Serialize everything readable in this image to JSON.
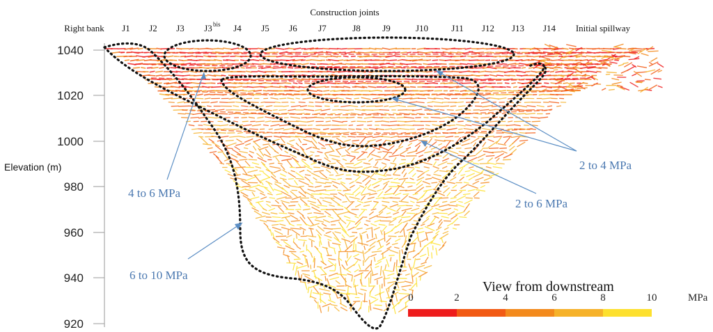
{
  "chart_data": {
    "type": "stress-field",
    "title": "Construction joints",
    "ylabel": "Elevation (m)",
    "ylim": [
      920,
      1040
    ],
    "yticks": [
      1040,
      1020,
      1000,
      980,
      960,
      940,
      920
    ],
    "joints": [
      "Right bank",
      "J1",
      "J2",
      "J3",
      "J3",
      "J4",
      "J5",
      "J6",
      "J7",
      "J8",
      "J9",
      "J10",
      "J11",
      "J12",
      "J13",
      "J14",
      "Initial spillway"
    ],
    "joint_superscript": "bis",
    "annotations": [
      {
        "label": "4 to 6 MPa"
      },
      {
        "label": "6 to 10 MPa"
      },
      {
        "label": "2 to 4 MPa"
      },
      {
        "label": "2 to 6 MPa"
      }
    ],
    "view_label": "View from downstream",
    "colorscale": {
      "unit": "MPa",
      "ticks": [
        "0",
        "2",
        "4",
        "6",
        "8",
        "10"
      ],
      "colors": [
        "#ee1c1c",
        "#f25a14",
        "#f38a1c",
        "#f6b22a",
        "#fde02e"
      ]
    }
  }
}
